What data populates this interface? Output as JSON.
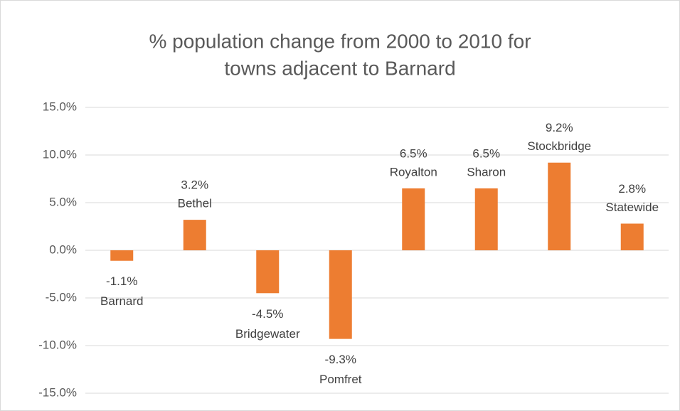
{
  "chart_data": {
    "type": "bar",
    "title": [
      "% population change from 2000 to 2010 for",
      "towns adjacent to Barnard"
    ],
    "categories": [
      "Barnard",
      "Bethel",
      "Bridgewater",
      "Pomfret",
      "Royalton",
      "Sharon",
      "Stockbridge",
      "Statewide"
    ],
    "values": [
      -1.1,
      3.2,
      -4.5,
      -9.3,
      6.5,
      6.5,
      9.2,
      2.8
    ],
    "value_labels": [
      "-1.1%",
      "3.2%",
      "-4.5%",
      "-9.3%",
      "6.5%",
      "6.5%",
      "9.2%",
      "2.8%"
    ],
    "color": "#ed7d31",
    "ylim": [
      -15,
      15
    ],
    "yticks": [
      {
        "value": -15,
        "label": "-15.0%"
      },
      {
        "value": -10,
        "label": "-10.0%"
      },
      {
        "value": -5,
        "label": "-5.0%"
      },
      {
        "value": 0,
        "label": "0.0%"
      },
      {
        "value": 5,
        "label": "5.0%"
      },
      {
        "value": 10,
        "label": "10.0%"
      },
      {
        "value": 15,
        "label": "15.0%"
      }
    ],
    "grid": true
  }
}
